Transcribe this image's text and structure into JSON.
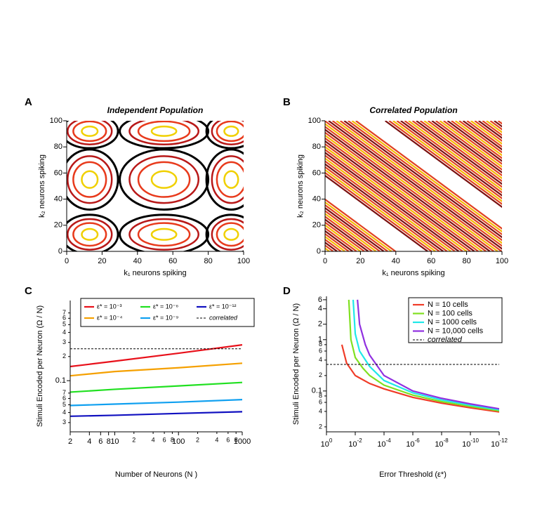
{
  "chart_data": [
    {
      "type": "contour",
      "panel": "A",
      "title": "Independent Population",
      "xlabel": "k₁  neurons spiking",
      "ylabel": "k₂ neurons spiking",
      "xlim": [
        0,
        100
      ],
      "ylim": [
        0,
        100
      ],
      "xticks": [
        0,
        20,
        40,
        60,
        80,
        100
      ],
      "yticks": [
        0,
        20,
        40,
        60,
        80,
        100
      ]
    },
    {
      "type": "contour",
      "panel": "B",
      "title": "Correlated Population",
      "xlabel": "k₁  neurons spiking",
      "ylabel": "k₂ neurons spiking",
      "xlim": [
        0,
        100
      ],
      "ylim": [
        0,
        100
      ],
      "xticks": [
        0,
        20,
        40,
        60,
        80,
        100
      ],
      "yticks": [
        0,
        20,
        40,
        60,
        80,
        100
      ]
    },
    {
      "type": "line",
      "panel": "C",
      "xscale": "log",
      "yscale": "log",
      "xlabel": "Number of Neurons (N )",
      "ylabel": "Stimuli Encoded per Neuron (Ω / N)",
      "xlim": [
        2,
        1000
      ],
      "ylim": [
        0.023,
        1.0
      ],
      "xticks": [
        2,
        4,
        6,
        8,
        10,
        {
          "value": 20,
          "label": "2"
        },
        {
          "value": 40,
          "label": "4"
        },
        {
          "value": 60,
          "label": "6"
        },
        {
          "value": 80,
          "label": "8"
        },
        100,
        {
          "value": 200,
          "label": "2"
        },
        {
          "value": 400,
          "label": "4"
        },
        {
          "value": 600,
          "label": "6"
        },
        {
          "value": 800,
          "label": "8"
        },
        1000
      ],
      "yticks": [
        {
          "value": 0.03,
          "label": "3"
        },
        {
          "value": 0.04,
          "label": "4"
        },
        {
          "value": 0.05,
          "label": "5"
        },
        {
          "value": 0.06,
          "label": "6"
        },
        {
          "value": 0.07,
          "label": "7"
        },
        0.1,
        {
          "value": 0.2,
          "label": "2"
        },
        {
          "value": 0.3,
          "label": "3"
        },
        {
          "value": 0.4,
          "label": "4"
        },
        {
          "value": 0.5,
          "label": "5"
        },
        {
          "value": 0.6,
          "label": "6"
        },
        {
          "value": 0.7,
          "label": "7"
        }
      ],
      "x": [
        2,
        10,
        100,
        1000
      ],
      "series": [
        {
          "name": "ε* = 10⁻³",
          "color": "#e8101a",
          "values": [
            0.15,
            0.175,
            0.22,
            0.28
          ]
        },
        {
          "name": "ε* = 10⁻⁴",
          "color": "#f5a000",
          "values": [
            0.115,
            0.13,
            0.145,
            0.165
          ]
        },
        {
          "name": "ε* = 10⁻⁶",
          "color": "#20e020",
          "values": [
            0.072,
            0.078,
            0.086,
            0.095
          ]
        },
        {
          "name": "ε* = 10⁻⁹",
          "color": "#10a0f0",
          "values": [
            0.049,
            0.051,
            0.054,
            0.058
          ]
        },
        {
          "name": "ε* = 10⁻¹²",
          "color": "#1010c0",
          "values": [
            0.036,
            0.037,
            0.039,
            0.041
          ]
        },
        {
          "name": "correlated",
          "color": "#000000",
          "linestyle": "dashed",
          "values": [
            0.25,
            0.25,
            0.25,
            0.25
          ]
        }
      ]
    },
    {
      "type": "line",
      "panel": "D",
      "xscale": "log",
      "yscale": "log",
      "xlabel": "Error Threshold (ε*)",
      "ylabel": "Stimuli Encoded per Neuron (Ω / N)",
      "xlim": [
        1,
        1e-12
      ],
      "ylim": [
        0.016,
        7
      ],
      "xticks": [
        {
          "value": 1,
          "label": "10",
          "sup": "0"
        },
        {
          "value": 0.01,
          "label": "10",
          "sup": "-2"
        },
        {
          "value": 0.0001,
          "label": "10",
          "sup": "-4"
        },
        {
          "value": 1e-06,
          "label": "10",
          "sup": "-6"
        },
        {
          "value": 1e-08,
          "label": "10",
          "sup": "-8"
        },
        {
          "value": 1e-10,
          "label": "10",
          "sup": "-10"
        },
        {
          "value": 1e-12,
          "label": "10",
          "sup": "-12"
        }
      ],
      "yticks": [
        {
          "value": 0.02,
          "label": "2"
        },
        {
          "value": 0.04,
          "label": "4"
        },
        {
          "value": 0.06,
          "label": "6"
        },
        {
          "value": 0.08,
          "label": "8"
        },
        0.1,
        {
          "value": 0.2,
          "label": "2"
        },
        {
          "value": 0.4,
          "label": "4"
        },
        {
          "value": 0.6,
          "label": "6"
        },
        {
          "value": 0.8,
          "label": "8"
        },
        1,
        2,
        4,
        6
      ],
      "series": [
        {
          "name": "N = 10 cells",
          "color": "#f03c28",
          "x": [
            0.085,
            0.04,
            0.01,
            0.001,
            0.0001,
            1e-06,
            1e-08,
            1e-10,
            1e-12
          ],
          "values": [
            0.8,
            0.35,
            0.2,
            0.14,
            0.11,
            0.075,
            0.058,
            0.047,
            0.039
          ]
        },
        {
          "name": "N = 100 cells",
          "color": "#80e020",
          "x": [
            0.028,
            0.02,
            0.01,
            0.003,
            0.001,
            0.0001,
            1e-06,
            1e-08,
            1e-10,
            1e-12
          ],
          "values": [
            6,
            1.0,
            0.45,
            0.28,
            0.2,
            0.13,
            0.083,
            0.062,
            0.05,
            0.041
          ]
        },
        {
          "name": "N = 1000 cells",
          "color": "#20e8e8",
          "x": [
            0.014,
            0.01,
            0.005,
            0.001,
            0.0001,
            1e-06,
            1e-08,
            1e-10,
            1e-12
          ],
          "values": [
            6,
            1.3,
            0.6,
            0.3,
            0.16,
            0.092,
            0.067,
            0.053,
            0.043
          ]
        },
        {
          "name": "N = 10,000 cells",
          "color": "#9030e0",
          "x": [
            0.007,
            0.005,
            0.002,
            0.001,
            0.0001,
            1e-06,
            1e-08,
            1e-10,
            1e-12
          ],
          "values": [
            6,
            2,
            0.8,
            0.5,
            0.2,
            0.1,
            0.072,
            0.056,
            0.045
          ]
        },
        {
          "name": "correlated",
          "color": "#000000",
          "linestyle": "dashed",
          "x": [
            1,
            1e-12
          ],
          "values": [
            0.33,
            0.33
          ]
        }
      ]
    }
  ]
}
